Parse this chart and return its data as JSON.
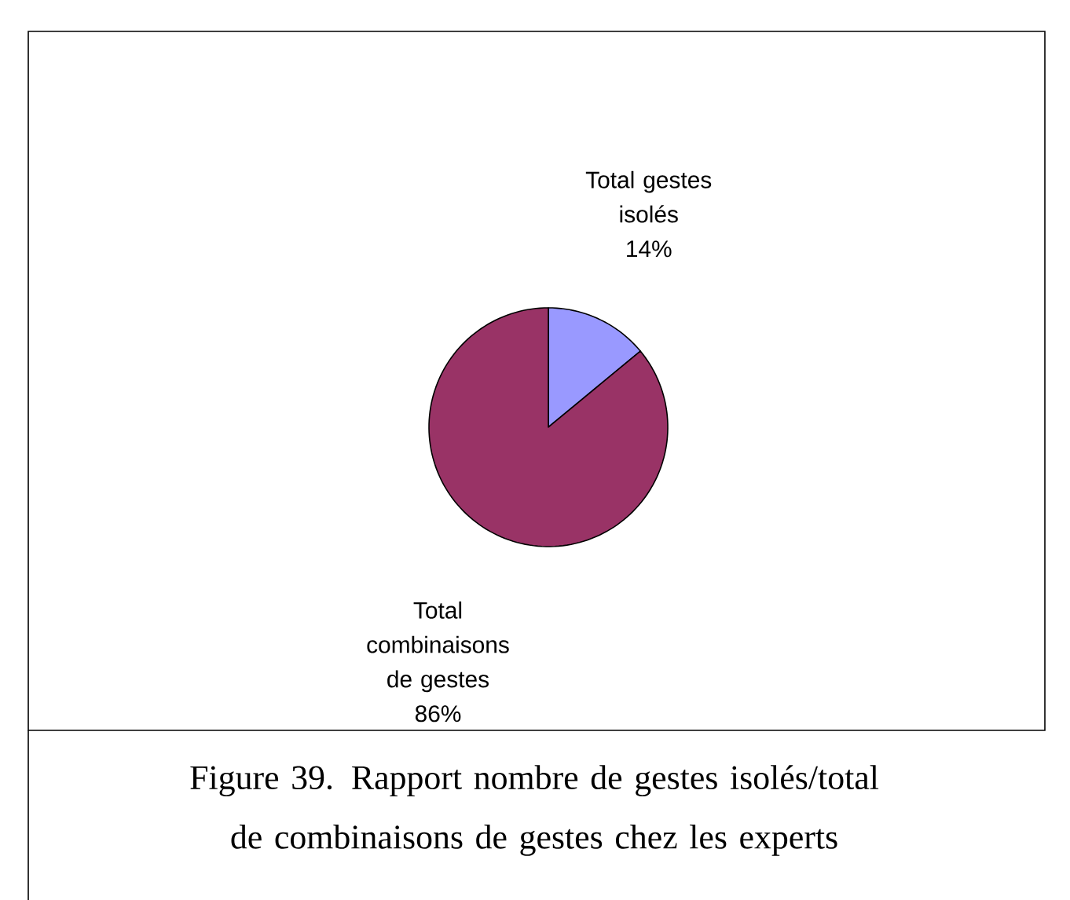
{
  "chart_data": {
    "type": "pie",
    "categories": [
      "Total gestes isolés",
      "Total combinaisons de gestes"
    ],
    "values": [
      14,
      86
    ],
    "colors": [
      "#9999ff",
      "#993366"
    ],
    "value_labels": [
      "14%",
      "86%"
    ],
    "annotations": [
      "Figure 39. Rapport nombre de gestes isolés/total de combinaisons de gestes chez les experts"
    ]
  }
}
